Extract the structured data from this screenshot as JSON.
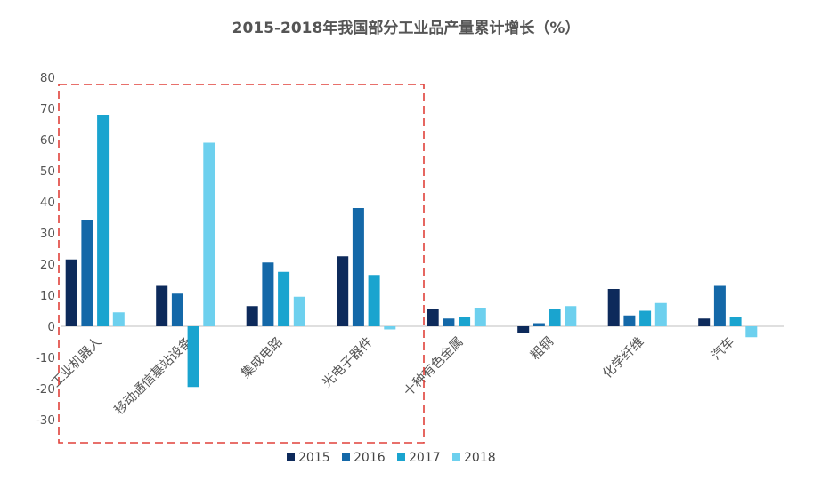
{
  "chart_data": {
    "type": "bar",
    "title": "2015-2018年我国部分工业品产量累计增长（%）",
    "categories": [
      "工业机器人",
      "移动通信基站设备",
      "集成电路",
      "光电子器件",
      "十种有色金属",
      "粗钢",
      "化学纤维",
      "汽车"
    ],
    "series": [
      {
        "name": "2015",
        "color": "#0d2a5b",
        "values": [
          21.5,
          13.0,
          6.5,
          22.5,
          5.5,
          -2.0,
          12.0,
          2.5
        ]
      },
      {
        "name": "2016",
        "color": "#1468a8",
        "values": [
          34.0,
          10.5,
          20.5,
          38.0,
          2.5,
          1.0,
          3.5,
          13.0
        ]
      },
      {
        "name": "2017",
        "color": "#1aa4cf",
        "values": [
          68.0,
          -19.5,
          17.5,
          16.5,
          3.0,
          5.5,
          5.0,
          3.0
        ]
      },
      {
        "name": "2018",
        "color": "#6dd0ee",
        "values": [
          4.5,
          59.0,
          9.5,
          -1.0,
          6.0,
          6.5,
          7.5,
          -3.5
        ]
      }
    ],
    "ylim": [
      -30,
      80
    ],
    "yticks": [
      "80",
      "70",
      "60",
      "50",
      "40",
      "30",
      "20",
      "10",
      "0",
      "-10",
      "-20",
      "-30"
    ],
    "xlabel": "",
    "ylabel": "",
    "legend": "bottom-center",
    "grid": false,
    "highlight_box": {
      "color": "#e0413a",
      "style": "dashed",
      "covers_categories": [
        0,
        1,
        2,
        3
      ]
    }
  }
}
